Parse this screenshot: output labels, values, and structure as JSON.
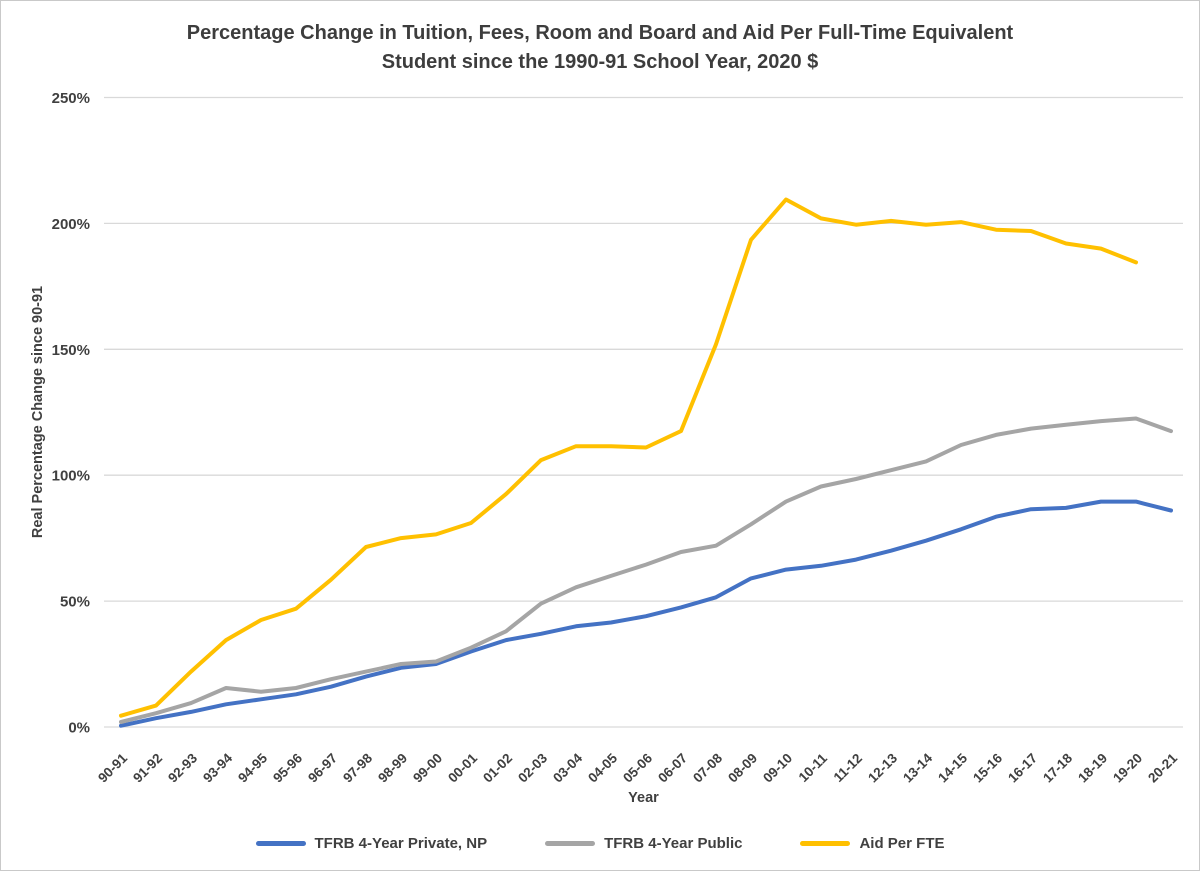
{
  "window": {
    "background": "#ffffff",
    "border_color": "#c9c9c9",
    "text_color": "#404040",
    "gridline_color": "#d9d9d9"
  },
  "chart_data": {
    "type": "line",
    "title": "Percentage Change in Tuition, Fees, Room and Board and Aid Per Full-Time Equivalent Student since the 1990-91 School Year, 2020 $",
    "title_lines": [
      "Percentage Change in Tuition, Fees, Room and Board and Aid Per Full-Time Equivalent",
      "Student since the 1990-91 School Year, 2020 $"
    ],
    "xlabel": "Year",
    "ylabel": "Real Percentage Change since 90-91",
    "ylim": [
      0,
      250
    ],
    "y_tick_values": [
      0,
      50,
      100,
      150,
      200,
      250
    ],
    "y_tick_labels": [
      "0%",
      "50%",
      "100%",
      "150%",
      "200%",
      "250%"
    ],
    "grid": "horizontal-only",
    "legend_position": "bottom-center",
    "categories": [
      "90-91",
      "91-92",
      "92-93",
      "93-94",
      "94-95",
      "95-96",
      "96-97",
      "97-98",
      "98-99",
      "99-00",
      "00-01",
      "01-02",
      "02-03",
      "03-04",
      "04-05",
      "05-06",
      "06-07",
      "07-08",
      "08-09",
      "09-10",
      "10-11",
      "11-12",
      "12-13",
      "13-14",
      "14-15",
      "15-16",
      "16-17",
      "17-18",
      "18-19",
      "19-20",
      "20-21"
    ],
    "series": [
      {
        "name": "TFRB 4-Year Private, NP",
        "color": "#4472C4",
        "values": [
          0.5,
          3.5,
          6,
          9,
          11,
          13,
          16,
          20,
          23.5,
          25,
          30,
          34.5,
          37,
          40,
          41.5,
          44,
          47.5,
          51.5,
          59,
          62.5,
          64,
          66.5,
          70,
          74,
          78.5,
          83.5,
          86.5,
          87,
          89.5,
          89.5,
          86
        ]
      },
      {
        "name": "TFRB 4-Year Public",
        "color": "#A5A5A5",
        "values": [
          2,
          5.5,
          9.5,
          15.5,
          14,
          15.5,
          19,
          22,
          25,
          26,
          31.5,
          38,
          49,
          55.5,
          60,
          64.5,
          69.5,
          72,
          80.5,
          89.5,
          95.5,
          98.5,
          102,
          105.5,
          112,
          116,
          118.5,
          120,
          121.5,
          122.5,
          117.5
        ]
      },
      {
        "name": "Aid Per FTE",
        "color": "#FFC000",
        "values": [
          4.5,
          8.5,
          22,
          34.5,
          42.5,
          47,
          58.5,
          71.5,
          75,
          76.5,
          81,
          92.5,
          106,
          111.5,
          111.5,
          111,
          117.5,
          152,
          193.5,
          209.5,
          202,
          199.5,
          201,
          199.5,
          200.5,
          197.5,
          197,
          192,
          190,
          184.5,
          null
        ]
      }
    ]
  }
}
